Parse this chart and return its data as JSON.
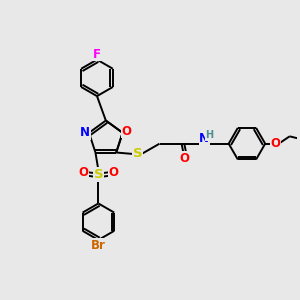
{
  "background_color": "#e8e8e8",
  "atom_colors": {
    "F": "#ff00ff",
    "N": "#0000ff",
    "O": "#ff0000",
    "S": "#cccc00",
    "Br": "#cc6600",
    "H": "#4a9090",
    "C": "#000000"
  },
  "bond_color": "#000000",
  "fs": 8.5,
  "lw": 1.4,
  "r_hex": 0.62,
  "r_pent": 0.58
}
